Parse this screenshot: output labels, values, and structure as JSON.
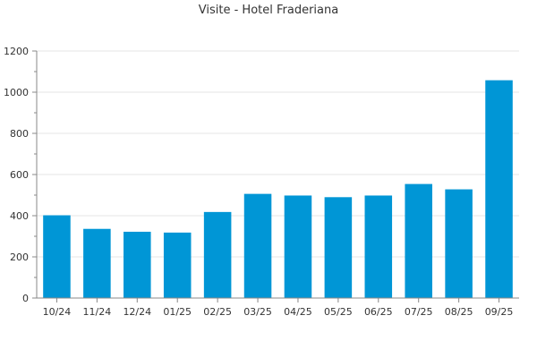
{
  "chart_data": {
    "type": "bar",
    "title": "Visite - Hotel Fraderiana",
    "xlabel": "",
    "ylabel": "",
    "categories": [
      "10/24",
      "11/24",
      "12/24",
      "01/25",
      "02/25",
      "03/25",
      "04/25",
      "05/25",
      "06/25",
      "07/25",
      "08/25",
      "09/25"
    ],
    "series": [
      {
        "values": [
          402,
          336,
          322,
          318,
          418,
          506,
          498,
          490,
          498,
          554,
          528,
          1058
        ]
      }
    ],
    "ylim": [
      0,
      1200
    ],
    "yticks": [
      0,
      200,
      400,
      600,
      800,
      1000,
      1200
    ],
    "grid": true,
    "legend": "none",
    "colors": {
      "bar": "#0096d6",
      "grid": "#e6e6e6",
      "axis": "#888888",
      "text": "#333333"
    }
  }
}
